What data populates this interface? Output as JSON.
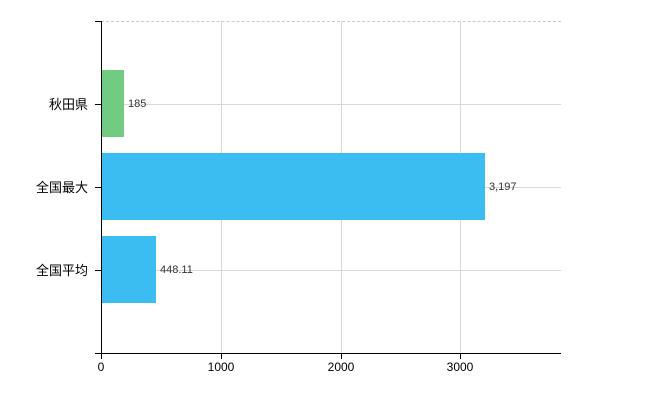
{
  "chart_data": {
    "type": "bar",
    "orientation": "horizontal",
    "categories": [
      "秋田県",
      "全国最大",
      "全国平均"
    ],
    "values": [
      185,
      3197,
      448.11
    ],
    "value_labels": [
      "185",
      "3,197",
      "448.11"
    ],
    "bar_colors": [
      "#71cb81",
      "#3bbdf2",
      "#3bbdf2"
    ],
    "x_ticks": [
      0,
      1000,
      2000,
      3000
    ],
    "x_tick_labels": [
      "0",
      "1000",
      "2000",
      "3000"
    ],
    "xlim": [
      0,
      3840
    ],
    "grid": true,
    "legend": "none"
  },
  "colors": {
    "bar_green": "#71cb81",
    "bar_blue": "#3bbdf2",
    "axis": "#000000",
    "gridline": "#d9d9d9",
    "top_border": "#c9c9c9",
    "value_label": "#333333",
    "background": "#ffffff"
  }
}
